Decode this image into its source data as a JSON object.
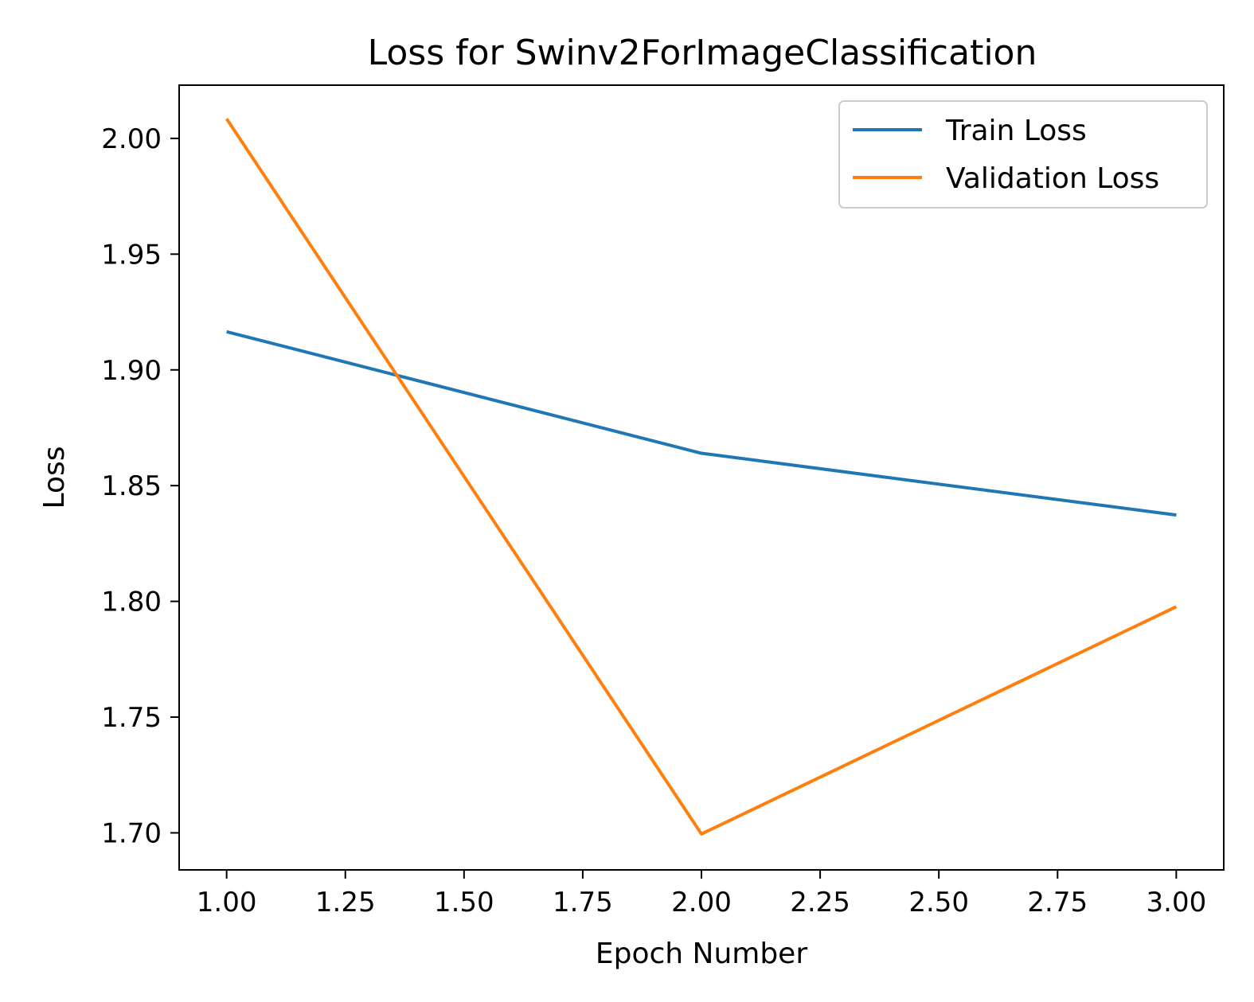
{
  "chart_data": {
    "type": "line",
    "title": "Loss for Swinv2ForImageClassification",
    "xlabel": "Epoch Number",
    "ylabel": "Loss",
    "xlim": [
      0.9,
      3.1
    ],
    "ylim": [
      1.684,
      2.023
    ],
    "x_ticks": [
      1.0,
      1.25,
      1.5,
      1.75,
      2.0,
      2.25,
      2.5,
      2.75,
      3.0
    ],
    "x_tick_labels": [
      "1.00",
      "1.25",
      "1.50",
      "1.75",
      "2.00",
      "2.25",
      "2.50",
      "2.75",
      "3.00"
    ],
    "y_ticks": [
      1.7,
      1.75,
      1.8,
      1.85,
      1.9,
      1.95,
      2.0
    ],
    "y_tick_labels": [
      "1.70",
      "1.75",
      "1.80",
      "1.85",
      "1.90",
      "1.95",
      "2.00"
    ],
    "grid": false,
    "legend_position": "top-right",
    "x": [
      1,
      2,
      3
    ],
    "series": [
      {
        "name": "Train Loss",
        "color": "#1f77b4",
        "values": [
          1.9165,
          1.864,
          1.8373
        ]
      },
      {
        "name": "Validation Loss",
        "color": "#ff7f0e",
        "values": [
          2.0085,
          1.6995,
          1.7977
        ]
      }
    ]
  }
}
